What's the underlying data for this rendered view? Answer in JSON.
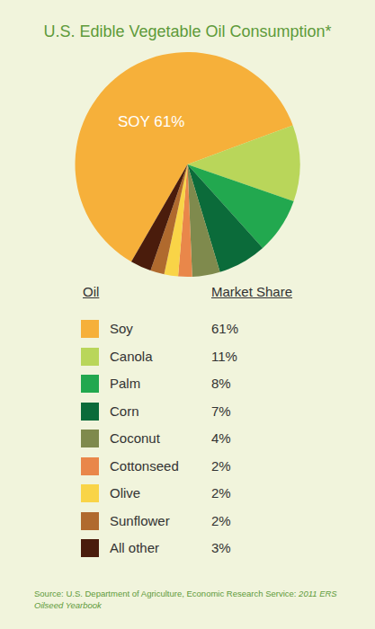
{
  "chart_data": {
    "type": "pie",
    "title": "U.S. Edible Vegetable Oil Consumption*",
    "categories": [
      "Soy",
      "Canola",
      "Palm",
      "Corn",
      "Coconut",
      "Cottonseed",
      "Olive",
      "Sunflower",
      "All other"
    ],
    "values": [
      61,
      11,
      8,
      7,
      4,
      2,
      2,
      2,
      3
    ],
    "value_labels": [
      "61%",
      "11%",
      "8%",
      "7%",
      "4%",
      "2%",
      "2%",
      "2%",
      "3%"
    ],
    "slice_texts": [
      "SOY 61%",
      null,
      null,
      null,
      null,
      null,
      null,
      null,
      null
    ],
    "colors": [
      "#f6b03a",
      "#b9d65a",
      "#22a84f",
      "#0b6b3a",
      "#7f8a4d",
      "#e9874a",
      "#f9d447",
      "#b06a2e",
      "#4a1c0c"
    ],
    "legend_headers": [
      "Oil",
      "Market Share"
    ],
    "source": {
      "text": "Source: U.S. Department of Agriculture, Economic Research Service:",
      "italic": "2011 ERS Oilseed Yearbook"
    }
  }
}
